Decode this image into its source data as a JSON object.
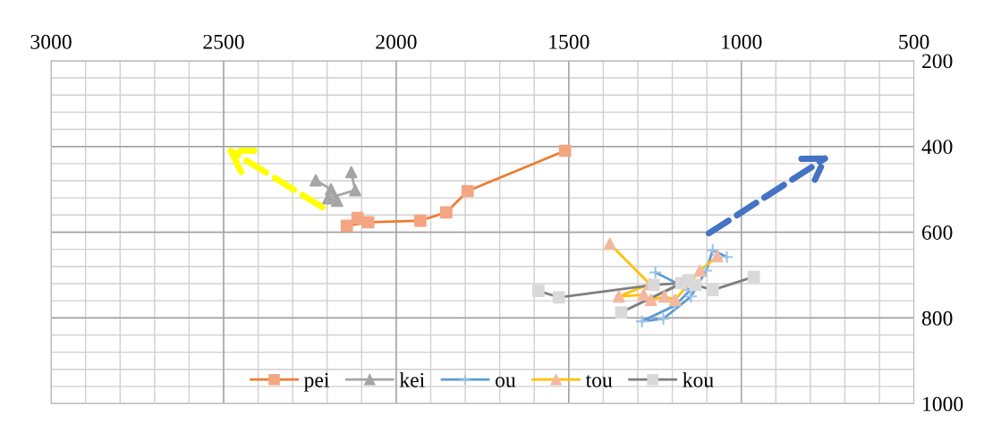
{
  "chart_data": {
    "type": "line",
    "xlim": [
      3000,
      500
    ],
    "ylim": [
      1000,
      200
    ],
    "xticks": [
      3000,
      2500,
      2000,
      1500,
      1000,
      500
    ],
    "yticks": [
      200,
      400,
      600,
      800,
      1000
    ],
    "grid": true,
    "legend": "bottom",
    "line_style": "solid",
    "series": [
      {
        "name": "pei",
        "color": "#ed7d31",
        "marker": "square",
        "colors": [
          "#f4a582",
          "#f4a582",
          "#f4a582",
          "#f4a582",
          "#f4a582",
          "#f4a582",
          "#f4a582"
        ],
        "x": [
          1511,
          1793,
          1855,
          1930,
          2081,
          2143,
          2112
        ],
        "values": [
          410,
          504,
          554,
          573,
          577,
          585,
          567
        ]
      },
      {
        "name": "kei",
        "color": "#a5a5a5",
        "marker": "triangle",
        "colors": [
          "#a5a5a5",
          "#a5a5a5",
          "#a5a5a5",
          "#a5a5a5",
          "#a5a5a5",
          "#a5a5a5"
        ],
        "x": [
          2233,
          2189,
          2171,
          2197,
          2119,
          2130
        ],
        "values": [
          479,
          500,
          527,
          521,
          502,
          460
        ]
      },
      {
        "name": "ou",
        "color": "#5b9bd5",
        "marker": "cross",
        "colors": [
          "#9dc3e6",
          "#9dc3e6",
          "#9dc3e6",
          "#9dc3e6",
          "#9dc3e6",
          "#9dc3e6",
          "#9dc3e6",
          "#9dc3e6",
          "#9dc3e6"
        ],
        "x": [
          1249,
          1148,
          1192,
          1288,
          1226,
          1146,
          1102,
          1083,
          1042
        ],
        "values": [
          694,
          735,
          771,
          808,
          802,
          750,
          690,
          642,
          658
        ]
      },
      {
        "name": "tou",
        "color": "#ffc000",
        "marker": "triangle",
        "colors": [
          "#f4b8a0",
          "#f4b8a0",
          "#f4b8a0",
          "#f4b8a0",
          "#f4b8a0",
          "#f4b8a0",
          "#f4b8a0",
          "#f4b8a0",
          "#f4b8a0"
        ],
        "x": [
          1381,
          1265,
          1355,
          1283,
          1262,
          1223,
          1192,
          1120,
          1070
        ],
        "values": [
          627,
          721,
          750,
          746,
          758,
          750,
          758,
          690,
          656
        ]
      },
      {
        "name": "kou",
        "color": "#7f7f7f",
        "marker": "square",
        "colors": [
          "#d9d9d9",
          "#d9d9d9",
          "#d9d9d9",
          "#d9d9d9",
          "#d9d9d9",
          "#d9d9d9",
          "#d9d9d9",
          "#d9d9d9",
          "#d9d9d9"
        ],
        "x": [
          1588,
          1529,
          1254,
          1174,
          1348,
          1153,
          1133,
          1083,
          964
        ],
        "values": [
          737,
          752,
          723,
          719,
          787,
          712,
          723,
          735,
          704
        ]
      }
    ]
  }
}
